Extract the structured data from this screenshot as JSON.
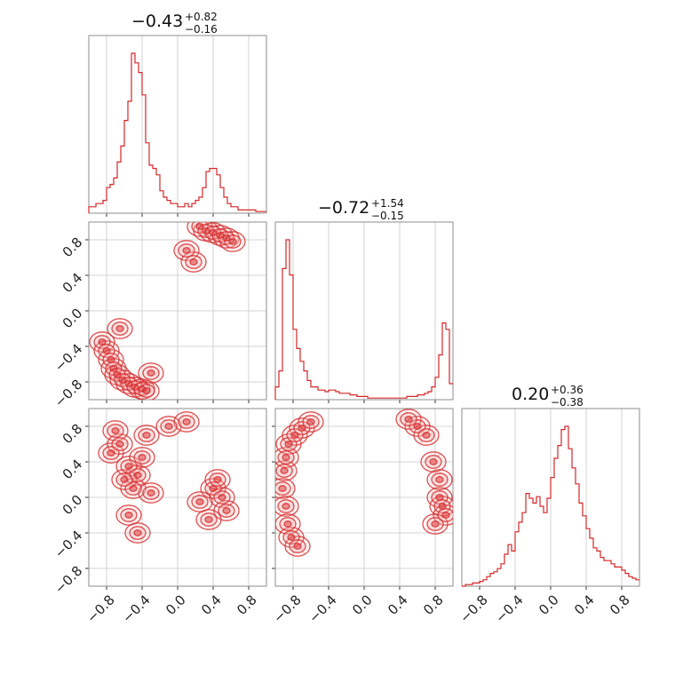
{
  "chart_data": {
    "type": "corner",
    "color": "#d62728",
    "fill_color": "#f4b6b8",
    "scatter_color": "#f3c4c6",
    "parameters": [
      {
        "value": "−0.43",
        "upper": "+0.82",
        "lower": "−0.16"
      },
      {
        "value": "−0.72",
        "upper": "+1.54",
        "lower": "−0.15"
      },
      {
        "value": "0.20",
        "upper": "+0.36",
        "lower": "−0.38"
      }
    ],
    "axis_range": [
      -1.0,
      1.0
    ],
    "ticks": [
      -0.8,
      -0.4,
      0.0,
      0.4,
      0.8
    ],
    "tick_labels": [
      "−0.8",
      "−0.4",
      "0.0",
      "0.4",
      "0.8"
    ],
    "grid": true,
    "histograms": [
      {
        "bin_edges_start": -1.0,
        "bin_width": 0.04,
        "counts": [
          0.04,
          0.04,
          0.06,
          0.06,
          0.08,
          0.16,
          0.18,
          0.22,
          0.32,
          0.42,
          0.58,
          0.7,
          1.0,
          0.94,
          0.88,
          0.74,
          0.44,
          0.3,
          0.28,
          0.24,
          0.14,
          0.1,
          0.08,
          0.06,
          0.06,
          0.04,
          0.04,
          0.06,
          0.04,
          0.06,
          0.08,
          0.1,
          0.16,
          0.26,
          0.28,
          0.28,
          0.24,
          0.16,
          0.1,
          0.06,
          0.04,
          0.04,
          0.02,
          0.02,
          0.02,
          0.02,
          0.02,
          0.01,
          0.01,
          0.01
        ]
      },
      {
        "bin_edges_start": -1.0,
        "bin_width": 0.04,
        "counts": [
          0.08,
          0.18,
          0.82,
          1.0,
          0.78,
          0.44,
          0.32,
          0.24,
          0.18,
          0.12,
          0.08,
          0.08,
          0.06,
          0.06,
          0.05,
          0.06,
          0.06,
          0.05,
          0.04,
          0.04,
          0.04,
          0.03,
          0.03,
          0.02,
          0.02,
          0.02,
          0.01,
          0.01,
          0.01,
          0.01,
          0.01,
          0.01,
          0.01,
          0.01,
          0.01,
          0.01,
          0.01,
          0.02,
          0.02,
          0.02,
          0.03,
          0.03,
          0.04,
          0.05,
          0.08,
          0.14,
          0.28,
          0.48,
          0.44,
          0.1
        ]
      },
      {
        "bin_edges_start": -1.0,
        "bin_width": 0.04,
        "counts": [
          0.0,
          0.01,
          0.01,
          0.02,
          0.02,
          0.03,
          0.04,
          0.06,
          0.08,
          0.09,
          0.11,
          0.14,
          0.2,
          0.26,
          0.22,
          0.34,
          0.4,
          0.46,
          0.58,
          0.55,
          0.52,
          0.56,
          0.5,
          0.46,
          0.55,
          0.68,
          0.8,
          0.88,
          0.98,
          1.0,
          0.86,
          0.74,
          0.64,
          0.52,
          0.44,
          0.36,
          0.3,
          0.24,
          0.22,
          0.18,
          0.16,
          0.16,
          0.14,
          0.12,
          0.12,
          0.1,
          0.08,
          0.06,
          0.05,
          0.04
        ]
      }
    ],
    "scatter_blobs": [
      {
        "panel": "1-0",
        "points": [
          [
            -0.85,
            -0.35
          ],
          [
            -0.8,
            -0.45
          ],
          [
            -0.75,
            -0.55
          ],
          [
            -0.72,
            -0.65
          ],
          [
            -0.68,
            -0.72
          ],
          [
            -0.62,
            -0.78
          ],
          [
            -0.55,
            -0.82
          ],
          [
            -0.48,
            -0.86
          ],
          [
            -0.4,
            -0.88
          ],
          [
            -0.35,
            -0.9
          ],
          [
            0.25,
            0.95
          ],
          [
            0.32,
            0.9
          ],
          [
            0.4,
            0.88
          ],
          [
            0.48,
            0.85
          ],
          [
            0.55,
            0.82
          ],
          [
            0.62,
            0.78
          ],
          [
            0.1,
            0.68
          ],
          [
            0.18,
            0.55
          ],
          [
            -0.65,
            -0.2
          ],
          [
            -0.3,
            -0.7
          ]
        ]
      },
      {
        "panel": "2-0",
        "points": [
          [
            -0.75,
            0.5
          ],
          [
            -0.65,
            0.6
          ],
          [
            -0.55,
            0.35
          ],
          [
            -0.45,
            0.25
          ],
          [
            -0.5,
            0.1
          ],
          [
            -0.4,
            0.45
          ],
          [
            -0.35,
            0.7
          ],
          [
            -0.6,
            0.2
          ],
          [
            -0.3,
            0.05
          ],
          [
            -0.55,
            -0.2
          ],
          [
            -0.45,
            -0.4
          ],
          [
            0.4,
            0.1
          ],
          [
            0.5,
            0.0
          ],
          [
            0.55,
            -0.15
          ],
          [
            0.35,
            -0.25
          ],
          [
            0.45,
            0.2
          ],
          [
            -0.1,
            0.8
          ],
          [
            0.1,
            0.85
          ],
          [
            -0.7,
            0.75
          ],
          [
            0.25,
            -0.05
          ]
        ]
      },
      {
        "panel": "2-1",
        "points": [
          [
            -0.92,
            0.1
          ],
          [
            -0.9,
            0.3
          ],
          [
            -0.88,
            0.45
          ],
          [
            -0.85,
            0.6
          ],
          [
            -0.78,
            0.7
          ],
          [
            -0.7,
            0.78
          ],
          [
            -0.6,
            0.85
          ],
          [
            -0.88,
            -0.1
          ],
          [
            -0.86,
            -0.3
          ],
          [
            -0.82,
            -0.45
          ],
          [
            -0.75,
            -0.55
          ],
          [
            0.85,
            0.0
          ],
          [
            0.88,
            -0.1
          ],
          [
            0.92,
            -0.2
          ],
          [
            0.85,
            0.2
          ],
          [
            0.8,
            -0.3
          ],
          [
            0.6,
            0.8
          ],
          [
            0.7,
            0.7
          ],
          [
            0.5,
            0.88
          ],
          [
            0.78,
            0.4
          ]
        ]
      }
    ],
    "contour_levels": 3
  }
}
